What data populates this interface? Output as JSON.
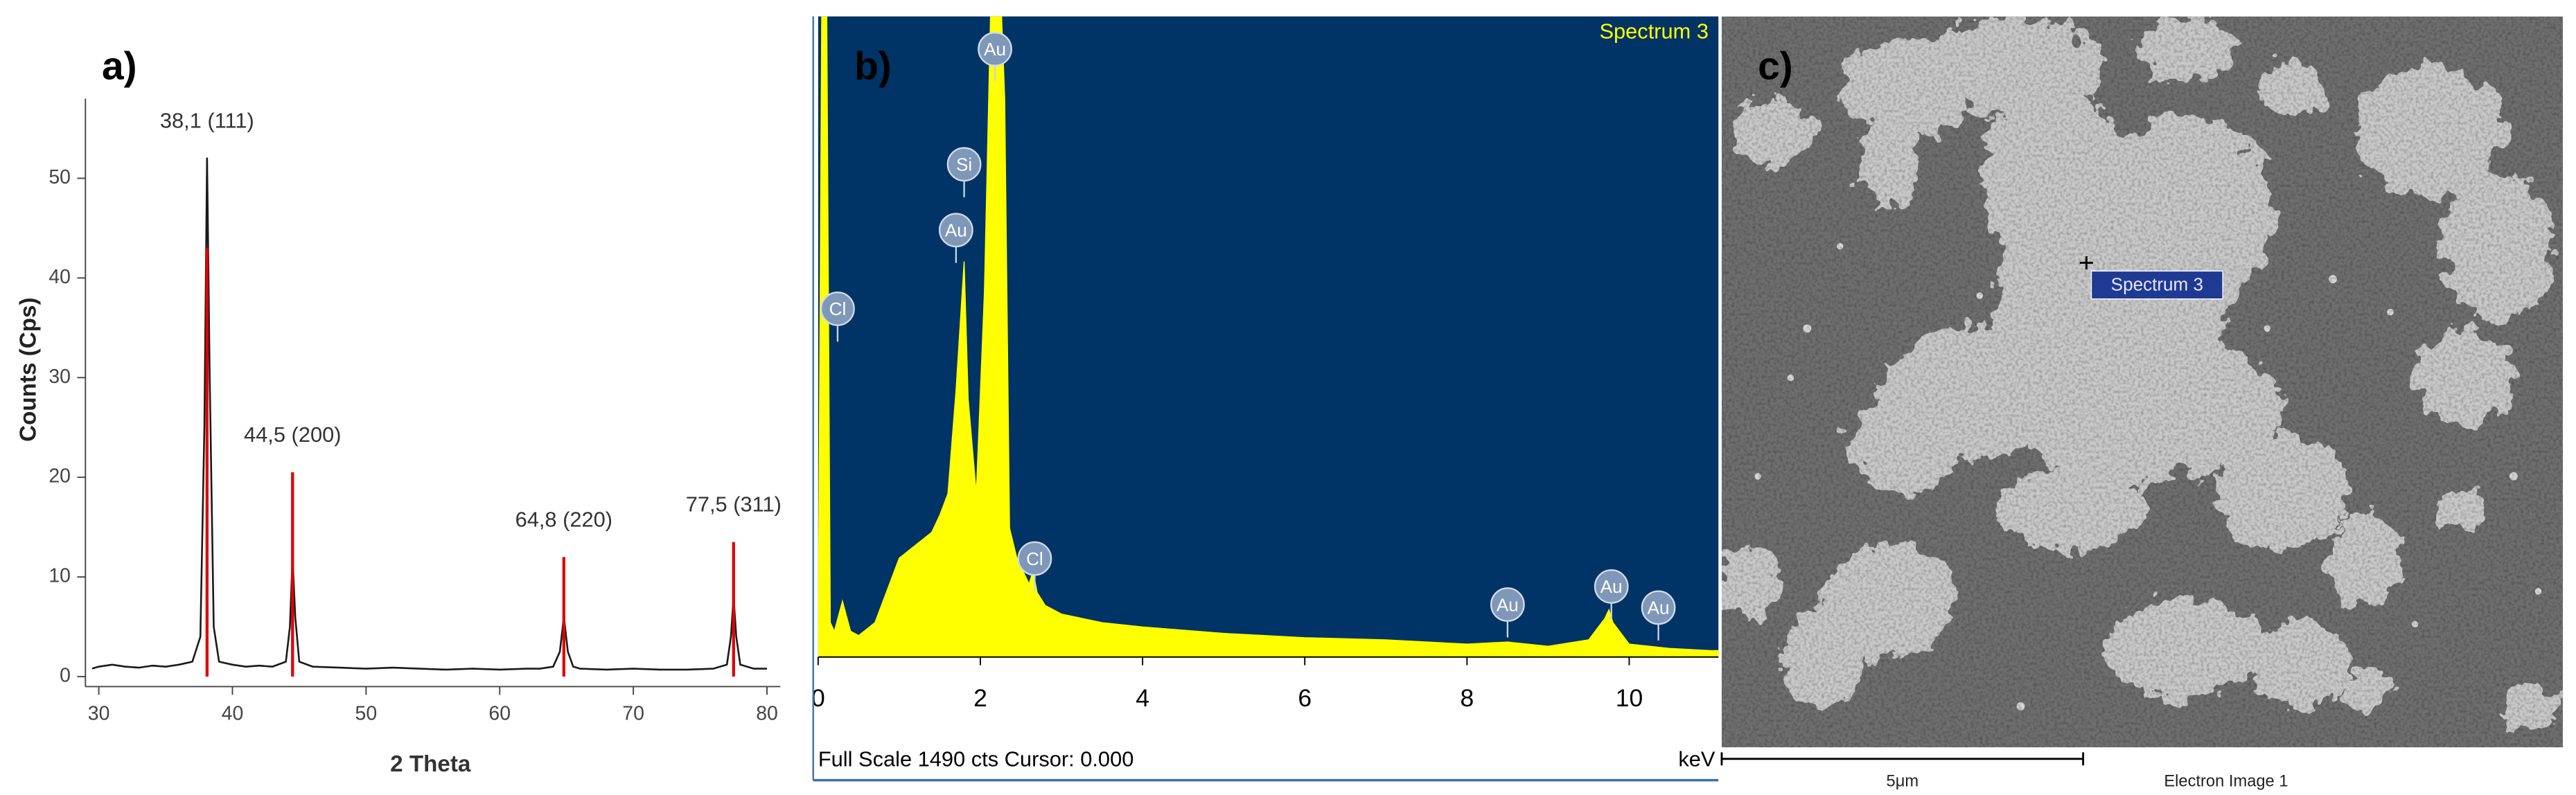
{
  "chart_data": [
    {
      "type": "line",
      "panel_label": "a)",
      "xlabel": "2 Theta",
      "ylabel": "Counts (Cps)",
      "xlim": [
        29,
        81
      ],
      "ylim": [
        -1,
        58
      ],
      "xticks": [
        30,
        40,
        50,
        60,
        70,
        80
      ],
      "yticks": [
        0,
        10,
        20,
        30,
        40,
        50
      ],
      "series": [
        {
          "color": "#1a1a1a",
          "x": [
            29.5,
            30,
            31,
            32,
            33,
            34,
            35,
            36,
            37,
            37.6,
            37.9,
            38.1,
            38.3,
            38.6,
            39,
            40,
            41,
            42,
            43,
            44,
            44.3,
            44.5,
            44.7,
            45,
            46,
            48,
            50,
            52,
            54,
            56,
            58,
            60,
            62,
            63,
            64,
            64.5,
            64.8,
            65.1,
            65.5,
            66,
            68,
            70,
            72,
            74,
            76,
            77,
            77.3,
            77.5,
            77.7,
            78,
            79,
            80
          ],
          "values": [
            0.8,
            1,
            1.2,
            1,
            0.9,
            1.1,
            1,
            1.2,
            1.5,
            4,
            25,
            52,
            30,
            5,
            1.5,
            1.2,
            1,
            1.1,
            1,
            1.5,
            5,
            12,
            6,
            1.5,
            1,
            0.9,
            0.8,
            0.9,
            0.8,
            0.7,
            0.8,
            0.7,
            0.8,
            0.8,
            1,
            2.5,
            6,
            2.5,
            1,
            0.8,
            0.7,
            0.8,
            0.7,
            0.7,
            0.8,
            1.2,
            4,
            8,
            4,
            1.2,
            0.8,
            0.8
          ]
        },
        {
          "type": "stem",
          "color": "#e00000",
          "x": [
            38.1,
            44.5,
            64.8,
            77.5
          ],
          "values": [
            43,
            20.5,
            12,
            13.5
          ]
        }
      ],
      "annotations": [
        {
          "text": "38,1 (111)"
        },
        {
          "text": "44,5 (200)"
        },
        {
          "text": "64,8 (220)"
        },
        {
          "text": "77,5 (311)"
        }
      ]
    },
    {
      "type": "area",
      "panel_label": "b)",
      "spectrum_label": "Spectrum 3",
      "footer": "Full Scale 1490 cts Cursor: 0.000",
      "xlabel": "keV",
      "plot_background": "#003366",
      "xlim": [
        0,
        11.1
      ],
      "ylim": [
        0,
        1490
      ],
      "xticks": [
        0,
        2,
        4,
        6,
        8,
        10
      ],
      "series": [
        {
          "color": "#ffff00",
          "x": [
            0,
            0.05,
            0.1,
            0.15,
            0.2,
            0.3,
            0.4,
            0.5,
            0.7,
            0.9,
            1.0,
            1.2,
            1.4,
            1.5,
            1.6,
            1.7,
            1.8,
            1.85,
            1.95,
            2.05,
            2.15,
            2.22,
            2.3,
            2.36,
            2.45,
            2.6,
            2.65,
            2.7,
            2.8,
            3,
            3.5,
            4,
            5,
            6,
            7,
            8,
            8.5,
            9,
            9.5,
            9.7,
            9.75,
            9.8,
            10,
            10.5,
            11,
            11.1
          ],
          "values": [
            0,
            1700,
            1700,
            80,
            60,
            130,
            60,
            50,
            80,
            180,
            230,
            260,
            290,
            330,
            380,
            620,
            920,
            600,
            380,
            850,
            1700,
            1700,
            1300,
            300,
            230,
            170,
            200,
            150,
            120,
            100,
            80,
            70,
            55,
            45,
            40,
            30,
            35,
            25,
            40,
            90,
            110,
            80,
            30,
            20,
            15,
            15
          ]
        }
      ],
      "annotations": [
        {
          "text": "Cl",
          "x": 0.24,
          "y": 810
        },
        {
          "text": "Si",
          "x": 1.8,
          "y": 1146
        },
        {
          "text": "Au",
          "x": 1.7,
          "y": 993
        },
        {
          "text": "Au",
          "x": 2.18,
          "y": 1414
        },
        {
          "text": "Cl",
          "x": 2.67,
          "y": 229
        },
        {
          "text": "Au",
          "x": 8.5,
          "y": 122
        },
        {
          "text": "Au",
          "x": 9.78,
          "y": 164
        },
        {
          "text": "Au",
          "x": 10.36,
          "y": 115
        }
      ]
    }
  ],
  "image": {
    "panel_label": "c)",
    "marker_label": "Spectrum 3",
    "scale_bar": "5μm",
    "caption": "Electron Image 1"
  }
}
